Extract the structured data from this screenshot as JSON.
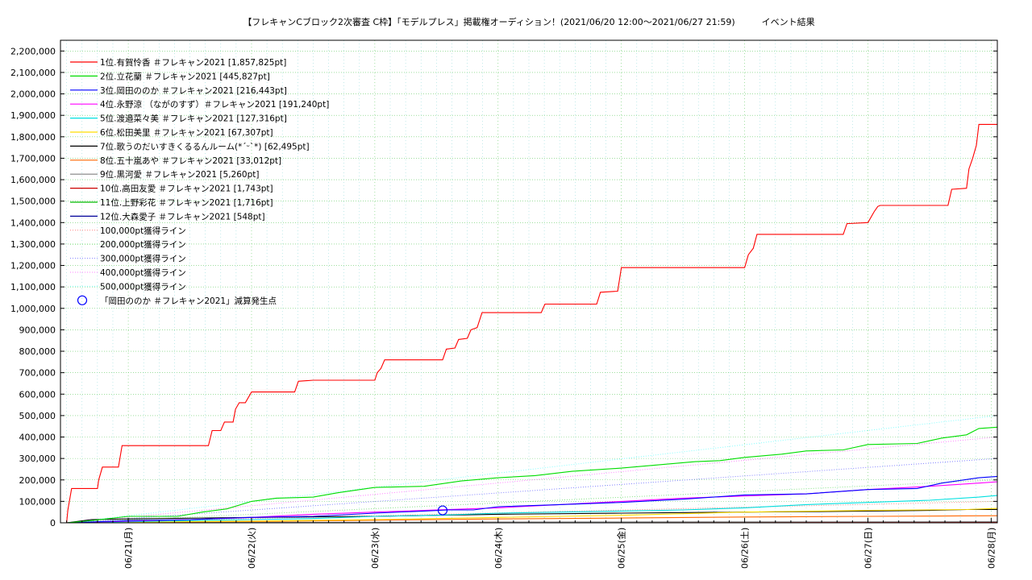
{
  "chart_data": {
    "type": "line",
    "title": "【フレキャンCブロック2次審査 C枠】「モデルプレス」掲載権オーディション！(2021/06/20 12:00〜2021/06/27 21:59)　　　イベント結果",
    "xlabel": "",
    "ylabel": "",
    "x_unit": "days since 2021/06/20 00:00",
    "xlim": [
      0.45,
      8.05
    ],
    "ylim": [
      0,
      2250000
    ],
    "y_ticks": [
      0,
      100000,
      200000,
      300000,
      400000,
      500000,
      600000,
      700000,
      800000,
      900000,
      1000000,
      1100000,
      1200000,
      1300000,
      1400000,
      1500000,
      1600000,
      1700000,
      1800000,
      1900000,
      2000000,
      2100000,
      2200000
    ],
    "y_tick_labels": [
      "0",
      "100,000",
      "200,000",
      "300,000",
      "400,000",
      "500,000",
      "600,000",
      "700,000",
      "800,000",
      "900,000",
      "1,000,000",
      "1,100,000",
      "1,200,000",
      "1,300,000",
      "1,400,000",
      "1,500,000",
      "1,600,000",
      "1,700,000",
      "1,800,000",
      "1,900,000",
      "2,000,000",
      "2,100,000",
      "2,200,000"
    ],
    "x_ticks": [
      1,
      2,
      3,
      4,
      5,
      6,
      7,
      8
    ],
    "x_tick_labels": [
      "06/21(月)",
      "06/22(火)",
      "06/23(水)",
      "06/24(木)",
      "06/25(金)",
      "06/26(土)",
      "06/27(日)",
      "06/28(月)"
    ],
    "grid": true,
    "legend_position": "top-left",
    "series": [
      {
        "name": "1位.有賀怜香 ＃フレキャン2021 [1,857,825pt]",
        "color": "#ff0000",
        "dash": "",
        "points": [
          [
            0.5,
            0
          ],
          [
            0.51,
            60000
          ],
          [
            0.54,
            160000
          ],
          [
            0.75,
            160000
          ],
          [
            0.76,
            200000
          ],
          [
            0.79,
            260000
          ],
          [
            0.92,
            260000
          ],
          [
            0.95,
            360000
          ],
          [
            1.65,
            360000
          ],
          [
            1.68,
            430000
          ],
          [
            1.75,
            430000
          ],
          [
            1.78,
            470000
          ],
          [
            1.85,
            470000
          ],
          [
            1.87,
            530000
          ],
          [
            1.9,
            560000
          ],
          [
            1.95,
            560000
          ],
          [
            2.0,
            610000
          ],
          [
            2.35,
            610000
          ],
          [
            2.38,
            660000
          ],
          [
            2.5,
            665000
          ],
          [
            3.0,
            665000
          ],
          [
            3.02,
            700000
          ],
          [
            3.05,
            720000
          ],
          [
            3.08,
            760000
          ],
          [
            3.55,
            760000
          ],
          [
            3.58,
            810000
          ],
          [
            3.65,
            815000
          ],
          [
            3.68,
            855000
          ],
          [
            3.75,
            860000
          ],
          [
            3.78,
            900000
          ],
          [
            3.83,
            910000
          ],
          [
            3.87,
            980000
          ],
          [
            4.35,
            980000
          ],
          [
            4.38,
            1020000
          ],
          [
            4.8,
            1020000
          ],
          [
            4.83,
            1075000
          ],
          [
            4.97,
            1080000
          ],
          [
            5.0,
            1190000
          ],
          [
            6.0,
            1190000
          ],
          [
            6.03,
            1250000
          ],
          [
            6.07,
            1280000
          ],
          [
            6.1,
            1345000
          ],
          [
            6.8,
            1345000
          ],
          [
            6.83,
            1395000
          ],
          [
            7.0,
            1400000
          ],
          [
            7.05,
            1450000
          ],
          [
            7.08,
            1475000
          ],
          [
            7.1,
            1480000
          ],
          [
            7.65,
            1480000
          ],
          [
            7.68,
            1555000
          ],
          [
            7.8,
            1560000
          ],
          [
            7.82,
            1650000
          ],
          [
            7.85,
            1700000
          ],
          [
            7.88,
            1760000
          ],
          [
            7.9,
            1857825
          ],
          [
            8.05,
            1857825
          ]
        ]
      },
      {
        "name": "2位.立花蘭 ＃フレキャン2021 [445,827pt]",
        "color": "#00dd00",
        "dash": "",
        "points": [
          [
            0.5,
            0
          ],
          [
            0.7,
            10000
          ],
          [
            1.0,
            30000
          ],
          [
            1.4,
            30000
          ],
          [
            1.6,
            50000
          ],
          [
            1.8,
            65000
          ],
          [
            2.0,
            100000
          ],
          [
            2.2,
            115000
          ],
          [
            2.5,
            120000
          ],
          [
            2.7,
            140000
          ],
          [
            3.0,
            165000
          ],
          [
            3.4,
            170000
          ],
          [
            3.7,
            195000
          ],
          [
            4.0,
            210000
          ],
          [
            4.3,
            220000
          ],
          [
            4.6,
            240000
          ],
          [
            5.0,
            255000
          ],
          [
            5.3,
            270000
          ],
          [
            5.6,
            285000
          ],
          [
            5.8,
            290000
          ],
          [
            6.0,
            305000
          ],
          [
            6.3,
            320000
          ],
          [
            6.5,
            335000
          ],
          [
            6.8,
            340000
          ],
          [
            7.0,
            365000
          ],
          [
            7.4,
            370000
          ],
          [
            7.6,
            395000
          ],
          [
            7.8,
            410000
          ],
          [
            7.9,
            440000
          ],
          [
            8.05,
            445827
          ]
        ]
      },
      {
        "name": "3位.岡田ののか ＃フレキャン2021 [216,443pt]",
        "color": "#0000ff",
        "dash": "",
        "points": [
          [
            0.5,
            0
          ],
          [
            1.0,
            10000
          ],
          [
            1.5,
            15000
          ],
          [
            2.0,
            25000
          ],
          [
            2.5,
            30000
          ],
          [
            3.0,
            45000
          ],
          [
            3.4,
            55000
          ],
          [
            3.6,
            60000
          ],
          [
            3.8,
            60000
          ],
          [
            4.0,
            75000
          ],
          [
            4.5,
            85000
          ],
          [
            5.0,
            95000
          ],
          [
            5.5,
            110000
          ],
          [
            6.0,
            130000
          ],
          [
            6.5,
            135000
          ],
          [
            7.0,
            155000
          ],
          [
            7.4,
            160000
          ],
          [
            7.6,
            185000
          ],
          [
            7.9,
            210000
          ],
          [
            8.05,
            216443
          ]
        ]
      },
      {
        "name": "4位.永野涼 （ながのすず）＃フレキャン2021 [191,240pt]",
        "color": "#ff00ff",
        "dash": "",
        "points": [
          [
            0.5,
            0
          ],
          [
            1.0,
            8000
          ],
          [
            1.5,
            15000
          ],
          [
            2.0,
            25000
          ],
          [
            2.5,
            40000
          ],
          [
            3.0,
            50000
          ],
          [
            3.5,
            60000
          ],
          [
            4.0,
            70000
          ],
          [
            4.5,
            85000
          ],
          [
            5.0,
            100000
          ],
          [
            5.5,
            115000
          ],
          [
            6.0,
            125000
          ],
          [
            6.5,
            135000
          ],
          [
            7.0,
            155000
          ],
          [
            7.5,
            170000
          ],
          [
            7.9,
            185000
          ],
          [
            8.05,
            191240
          ]
        ]
      },
      {
        "name": "5位.渡邉菜々美 ＃フレキャン2021 [127,316pt]",
        "color": "#00e0e0",
        "dash": "",
        "points": [
          [
            0.5,
            0
          ],
          [
            1.0,
            5000
          ],
          [
            1.5,
            10000
          ],
          [
            2.0,
            15000
          ],
          [
            2.5,
            20000
          ],
          [
            3.0,
            30000
          ],
          [
            3.5,
            35000
          ],
          [
            4.0,
            45000
          ],
          [
            4.5,
            50000
          ],
          [
            5.0,
            55000
          ],
          [
            5.5,
            60000
          ],
          [
            6.0,
            70000
          ],
          [
            6.5,
            85000
          ],
          [
            7.0,
            95000
          ],
          [
            7.5,
            105000
          ],
          [
            7.9,
            120000
          ],
          [
            8.05,
            127316
          ]
        ]
      },
      {
        "name": "6位.松田美里 ＃フレキャン2021 [67,307pt]",
        "color": "#ffdd00",
        "dash": "",
        "points": [
          [
            0.5,
            0
          ],
          [
            1.0,
            3000
          ],
          [
            2.0,
            8000
          ],
          [
            3.0,
            15000
          ],
          [
            4.0,
            25000
          ],
          [
            5.0,
            35000
          ],
          [
            6.0,
            50000
          ],
          [
            7.0,
            58000
          ],
          [
            7.8,
            62000
          ],
          [
            8.05,
            67307
          ]
        ]
      },
      {
        "name": "7位.歌うのだいすきくるるんルーム(*´ᵕ`*) [62,495pt]",
        "color": "#000000",
        "dash": "",
        "points": [
          [
            0.5,
            0
          ],
          [
            0.7,
            15000
          ],
          [
            1.0,
            18000
          ],
          [
            2.0,
            25000
          ],
          [
            3.0,
            30000
          ],
          [
            3.5,
            35000
          ],
          [
            4.0,
            40000
          ],
          [
            5.0,
            45000
          ],
          [
            6.0,
            50000
          ],
          [
            6.5,
            52000
          ],
          [
            7.0,
            55000
          ],
          [
            7.5,
            58000
          ],
          [
            7.8,
            62000
          ],
          [
            8.05,
            62495
          ]
        ]
      },
      {
        "name": "8位.五十嵐あや ＃フレキャン2021 [33,012pt]",
        "color": "#ff6600",
        "dash": "",
        "points": [
          [
            0.5,
            0
          ],
          [
            1.0,
            3000
          ],
          [
            2.0,
            6000
          ],
          [
            3.0,
            12000
          ],
          [
            4.0,
            18000
          ],
          [
            5.0,
            22000
          ],
          [
            6.0,
            27000
          ],
          [
            7.0,
            30000
          ],
          [
            8.05,
            33012
          ]
        ]
      },
      {
        "name": "9位.黒河愛 ＃フレキャン2021 [5,260pt]",
        "color": "#808080",
        "dash": "",
        "points": [
          [
            0.5,
            0
          ],
          [
            2.0,
            2000
          ],
          [
            4.0,
            3500
          ],
          [
            6.0,
            4500
          ],
          [
            8.05,
            5260
          ]
        ]
      },
      {
        "name": "10位.高田友愛 ＃フレキャン2021 [1,743pt]",
        "color": "#cc0000",
        "dash": "",
        "points": [
          [
            0.5,
            0
          ],
          [
            3.0,
            800
          ],
          [
            5.0,
            1300
          ],
          [
            8.05,
            1743
          ]
        ]
      },
      {
        "name": "11位.上野彩花 ＃フレキャン2021 [1,716pt]",
        "color": "#00bb00",
        "dash": "",
        "points": [
          [
            0.5,
            0
          ],
          [
            3.0,
            700
          ],
          [
            5.0,
            1200
          ],
          [
            8.05,
            1716
          ]
        ]
      },
      {
        "name": "12位.大森愛子 ＃フレキャン2021 [548pt]",
        "color": "#000099",
        "dash": "",
        "points": [
          [
            0.5,
            0
          ],
          [
            4.0,
            300
          ],
          [
            8.05,
            548
          ]
        ]
      },
      {
        "name": "100,000pt獲得ライン",
        "color": "#ff8080",
        "dash": "1,2",
        "points": [
          [
            0.5,
            0
          ],
          [
            8.05,
            100000
          ]
        ]
      },
      {
        "name": "200,000pt獲得ライン",
        "color": "#80e080",
        "dash": "1,2",
        "points": [
          [
            0.5,
            0
          ],
          [
            8.05,
            200000
          ]
        ]
      },
      {
        "name": "300,000pt獲得ライン",
        "color": "#8080ff",
        "dash": "1,2",
        "points": [
          [
            0.5,
            0
          ],
          [
            8.05,
            300000
          ]
        ]
      },
      {
        "name": "400,000pt獲得ライン",
        "color": "#ff80ff",
        "dash": "1,2",
        "points": [
          [
            0.5,
            0
          ],
          [
            8.05,
            400000
          ]
        ]
      },
      {
        "name": "500,000pt獲得ライン",
        "color": "#80ffff",
        "dash": "1,2",
        "points": [
          [
            0.5,
            0
          ],
          [
            8.05,
            500000
          ]
        ]
      }
    ],
    "markers": [
      {
        "name": "「岡田ののか ＃フレキャン2021」減算発生点",
        "color": "#0000ff",
        "shape": "open-circle",
        "x": 3.55,
        "y": 58000
      }
    ]
  }
}
